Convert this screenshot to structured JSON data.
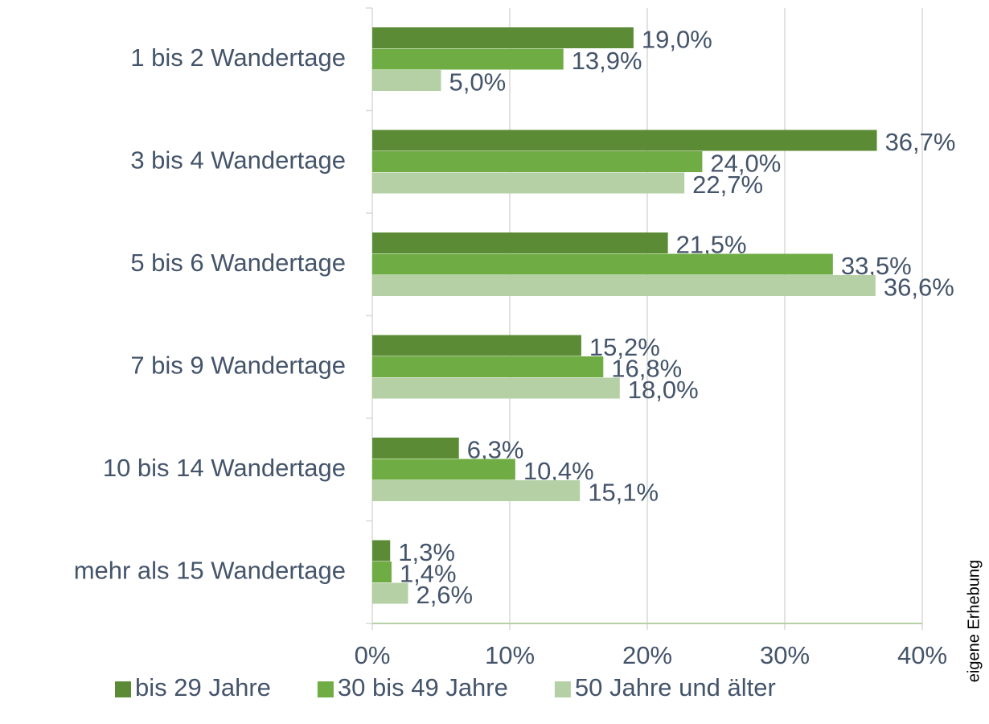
{
  "chart_data": {
    "type": "hbar",
    "categories": [
      "1 bis 2 Wandertage",
      "3 bis 4 Wandertage",
      "5 bis 6 Wandertage",
      "7 bis 9 Wandertage",
      "10 bis 14 Wandertage",
      "mehr als 15 Wandertage"
    ],
    "series": [
      {
        "name": "bis 29 Jahre",
        "color": "#5b8c35",
        "values": [
          19.0,
          36.7,
          21.5,
          15.2,
          6.3,
          1.3
        ],
        "value_labels": [
          "19,0%",
          "36,7%",
          "21,5%",
          "15,2%",
          "6,3%",
          "1,3%"
        ]
      },
      {
        "name": "30 bis 49 Jahre",
        "color": "#6fac44",
        "values": [
          13.9,
          24.0,
          33.5,
          16.8,
          10.4,
          1.4
        ],
        "value_labels": [
          "13,9%",
          "24,0%",
          "33,5%",
          "16,8%",
          "10,4%",
          "1,4%"
        ]
      },
      {
        "name": "50 Jahre und älter",
        "color": "#b5d0a4",
        "values": [
          5.0,
          22.7,
          36.6,
          18.0,
          15.1,
          2.6
        ],
        "value_labels": [
          "5,0%",
          "22,7%",
          "36,6%",
          "18,0%",
          "15,1%",
          "2,6%"
        ]
      }
    ],
    "xlim": [
      0,
      40
    ],
    "xticks": [
      {
        "value": 0,
        "label": "0%"
      },
      {
        "value": 10,
        "label": "10%"
      },
      {
        "value": 20,
        "label": "20%"
      },
      {
        "value": 30,
        "label": "30%"
      },
      {
        "value": 40,
        "label": "40%"
      }
    ],
    "grid": true,
    "legend": "bottom",
    "source": "eigene Erhebung"
  }
}
